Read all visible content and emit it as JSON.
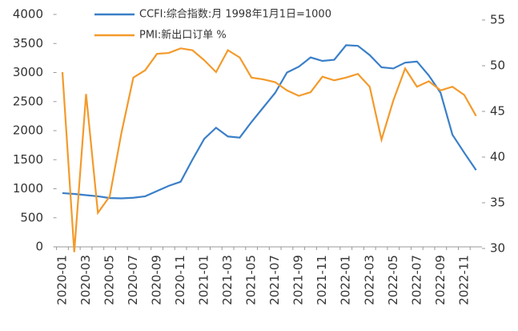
{
  "chart_data": {
    "type": "line",
    "categories": [
      "2020-01",
      null,
      "2020-03",
      null,
      "2020-05",
      null,
      "2020-07",
      null,
      "2020-09",
      null,
      "2020-11",
      null,
      "2021-01",
      null,
      "2021-03",
      null,
      "2021-05",
      null,
      "2021-07",
      null,
      "2021-09",
      null,
      "2021-11",
      null,
      "2022-01",
      null,
      "2022-03",
      null,
      "2022-05",
      null,
      "2022-07",
      null,
      "2022-09",
      null,
      "2022-11",
      null
    ],
    "series": [
      {
        "name": "CCFI:综合指数:月 1998年1月1日=1000",
        "color": "#3a7fc8",
        "values": [
          925,
          910,
          890,
          870,
          840,
          835,
          845,
          870,
          960,
          1050,
          1120,
          1500,
          1860,
          2050,
          1900,
          1880,
          2150,
          2400,
          2650,
          3000,
          3100,
          3260,
          3200,
          3220,
          3470,
          3460,
          3300,
          3090,
          3070,
          3170,
          3190,
          2950,
          2650,
          1930,
          1620,
          1320
        ]
      },
      {
        "name": "PMI:新出口订单 %",
        "color": "#f39a2b",
        "axis": "y2",
        "values": [
          49.3,
          29.6,
          46.9,
          33.9,
          35.7,
          42.7,
          48.7,
          49.5,
          51.3,
          51.4,
          51.9,
          51.7,
          50.6,
          49.3,
          51.7,
          50.9,
          48.7,
          48.5,
          48.2,
          47.3,
          46.7,
          47.1,
          48.8,
          48.4,
          48.7,
          49.1,
          47.7,
          41.9,
          46.2,
          49.7,
          47.7,
          48.3,
          47.3,
          47.7,
          46.8,
          44.5
        ]
      }
    ],
    "ylim": [
      0,
      4000
    ],
    "yticks": [
      0,
      500,
      1000,
      1500,
      2000,
      2500,
      3000,
      3500,
      4000
    ],
    "y2lim": [
      30,
      55
    ],
    "y2ticks": [
      30,
      35,
      40,
      45,
      50,
      55
    ]
  }
}
